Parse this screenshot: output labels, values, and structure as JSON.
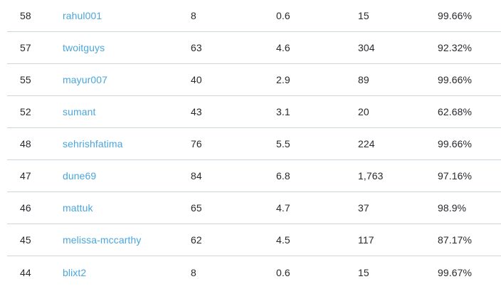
{
  "colors": {
    "background": "#ffffff",
    "text": "#26292e",
    "link": "#4ba6dc",
    "divider": "#ccd6dd"
  },
  "table": {
    "rows": [
      {
        "rank": "58",
        "username": "rahul001",
        "value1": "8",
        "value2": "0.6",
        "value3": "15",
        "percent": "99.66%"
      },
      {
        "rank": "57",
        "username": "twoitguys",
        "value1": "63",
        "value2": "4.6",
        "value3": "304",
        "percent": "92.32%"
      },
      {
        "rank": "55",
        "username": "mayur007",
        "value1": "40",
        "value2": "2.9",
        "value3": "89",
        "percent": "99.66%"
      },
      {
        "rank": "52",
        "username": "sumant",
        "value1": "43",
        "value2": "3.1",
        "value3": "20",
        "percent": "62.68%"
      },
      {
        "rank": "48",
        "username": "sehrishfatima",
        "value1": "76",
        "value2": "5.5",
        "value3": "224",
        "percent": "99.66%"
      },
      {
        "rank": "47",
        "username": "dune69",
        "value1": "84",
        "value2": "6.8",
        "value3": "1,763",
        "percent": "97.16%"
      },
      {
        "rank": "46",
        "username": "mattuk",
        "value1": "65",
        "value2": "4.7",
        "value3": "37",
        "percent": "98.9%"
      },
      {
        "rank": "45",
        "username": "melissa-mccarthy",
        "value1": "62",
        "value2": "4.5",
        "value3": "117",
        "percent": "87.17%"
      },
      {
        "rank": "44",
        "username": "blixt2",
        "value1": "8",
        "value2": "0.6",
        "value3": "15",
        "percent": "99.67%"
      }
    ]
  }
}
